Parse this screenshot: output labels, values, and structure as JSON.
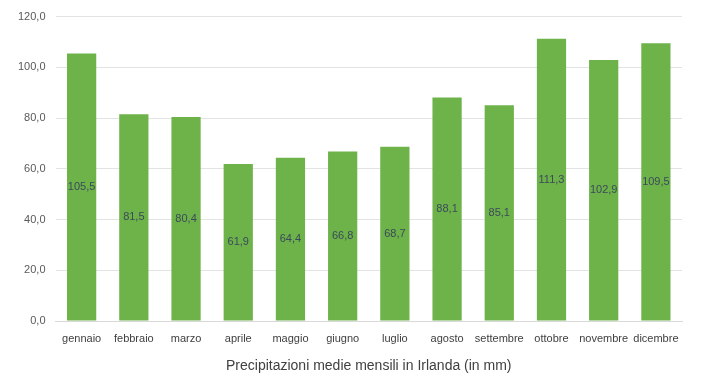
{
  "chart_data": {
    "type": "bar",
    "x_label": "Precipitazioni medie mensili in Irlanda (in mm)",
    "categories": [
      "gennaio",
      "febbraio",
      "marzo",
      "aprile",
      "maggio",
      "giugno",
      "luglio",
      "agosto",
      "settembre",
      "ottobre",
      "novembre",
      "dicembre"
    ],
    "values": [
      105.5,
      81.5,
      80.4,
      61.9,
      64.4,
      66.8,
      68.7,
      88.1,
      85.1,
      111.3,
      102.9,
      109.5
    ],
    "value_labels": [
      "105,5",
      "81,5",
      "80,4",
      "61,9",
      "64,4",
      "66,8",
      "68,7",
      "88,1",
      "85,1",
      "111,3",
      "102,9",
      "109,5"
    ],
    "color": "#6db34a",
    "ylim": [
      0,
      120
    ],
    "yticks": [
      {
        "value": 0,
        "label": "0,0"
      },
      {
        "value": 20,
        "label": "20,0"
      },
      {
        "value": 40,
        "label": "40,0"
      },
      {
        "value": 60,
        "label": "60,0"
      },
      {
        "value": 80,
        "label": "80,0"
      },
      {
        "value": 100,
        "label": "100,0"
      },
      {
        "value": 120,
        "label": "120,0"
      }
    ],
    "grid": true,
    "data_labels": true
  }
}
